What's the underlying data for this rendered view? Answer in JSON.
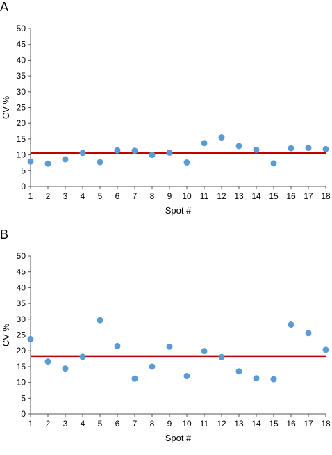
{
  "chart_data": [
    {
      "type": "scatter",
      "panel_label": "A",
      "xlabel": "Spot #",
      "ylabel": "CV %",
      "x": [
        1,
        2,
        3,
        4,
        5,
        6,
        7,
        8,
        9,
        10,
        11,
        12,
        13,
        14,
        15,
        16,
        17,
        18
      ],
      "y": [
        7.9,
        7.2,
        8.6,
        10.6,
        7.7,
        11.4,
        11.3,
        10.0,
        10.7,
        7.6,
        13.7,
        15.5,
        12.8,
        11.6,
        7.3,
        12.1,
        12.2,
        11.8
      ],
      "reference_line": 10.6,
      "xlim": [
        1,
        18
      ],
      "ylim": [
        0,
        50
      ],
      "yticks": [
        0,
        5,
        10,
        15,
        20,
        25,
        30,
        35,
        40,
        45,
        50
      ],
      "grid": false,
      "legend": "none",
      "colors": {
        "points": "#5b9bd5",
        "line": "#c00000"
      }
    },
    {
      "type": "scatter",
      "panel_label": "B",
      "xlabel": "Spot #",
      "ylabel": "CV %",
      "x": [
        1,
        2,
        3,
        4,
        5,
        6,
        7,
        8,
        9,
        10,
        11,
        12,
        13,
        14,
        15,
        16,
        17,
        18
      ],
      "y": [
        23.7,
        16.6,
        14.4,
        18.1,
        29.7,
        21.5,
        11.2,
        15.0,
        21.3,
        12.0,
        19.9,
        18.0,
        13.5,
        11.3,
        11.0,
        28.3,
        25.6,
        20.3
      ],
      "reference_line": 18.3,
      "xlim": [
        1,
        18
      ],
      "ylim": [
        0,
        50
      ],
      "yticks": [
        0,
        5,
        10,
        15,
        20,
        25,
        30,
        35,
        40,
        45,
        50
      ],
      "grid": false,
      "legend": "none",
      "colors": {
        "points": "#5b9bd5",
        "line": "#c00000"
      }
    }
  ]
}
